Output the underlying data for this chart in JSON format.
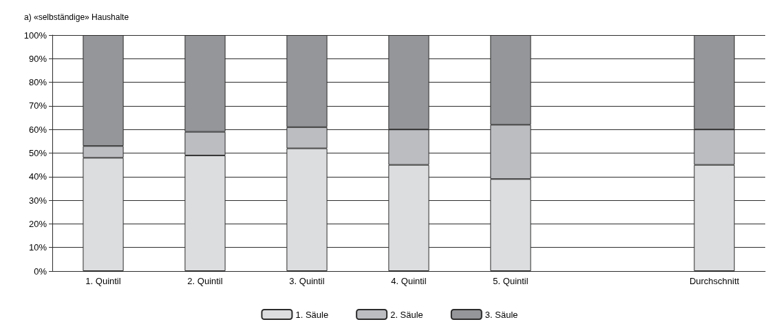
{
  "chart_data": {
    "type": "bar",
    "title": "a) «selbständige» Haushalte",
    "stacked": true,
    "categories": [
      "1. Quintil",
      "2. Quintil",
      "3. Quintil",
      "4. Quintil",
      "5. Quintil",
      null,
      "Durchschnitt"
    ],
    "series": [
      {
        "name": "1. Säule",
        "color": "#dcdddf",
        "values": [
          48,
          49,
          52,
          45,
          39,
          null,
          45
        ]
      },
      {
        "name": "2. Säule",
        "color": "#bcbdc1",
        "values": [
          5,
          10,
          9,
          15,
          23,
          null,
          15
        ]
      },
      {
        "name": "3. Säule",
        "color": "#959699",
        "values": [
          47,
          41,
          39,
          40,
          38,
          null,
          40
        ]
      }
    ],
    "ylim": [
      0,
      100
    ],
    "yticks": [
      {
        "value": 0,
        "label": "0%"
      },
      {
        "value": 10,
        "label": "10%"
      },
      {
        "value": 20,
        "label": "20%"
      },
      {
        "value": 30,
        "label": "30%"
      },
      {
        "value": 40,
        "label": "40%"
      },
      {
        "value": 50,
        "label": "50%"
      },
      {
        "value": 60,
        "label": "60%"
      },
      {
        "value": 70,
        "label": "70%"
      },
      {
        "value": 80,
        "label": "80%"
      },
      {
        "value": 90,
        "label": "90%"
      },
      {
        "value": 100,
        "label": "100%"
      }
    ],
    "grid": true,
    "legend": "bottom"
  }
}
